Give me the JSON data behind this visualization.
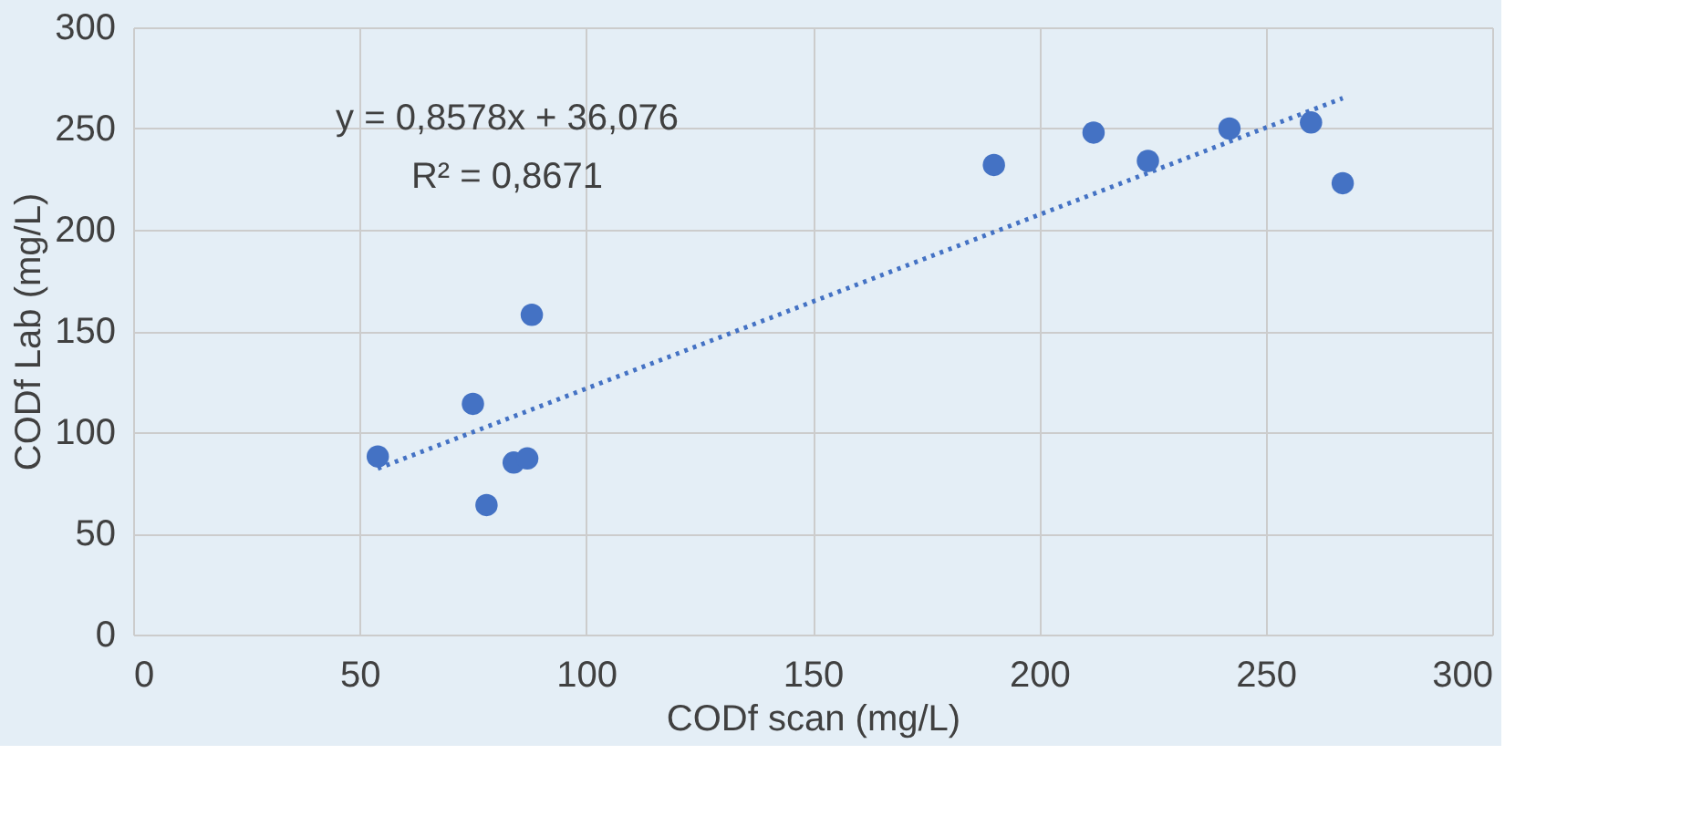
{
  "chart_data": {
    "type": "scatter",
    "xlabel": "CODf scan (mg/L)",
    "ylabel": "CODf Lab (mg/L)",
    "xlim": [
      0,
      300
    ],
    "xticks": [
      0,
      50,
      100,
      150,
      200,
      250,
      300
    ],
    "ylim": [
      0,
      300
    ],
    "yticks": [
      0,
      50,
      100,
      150,
      200,
      250,
      300
    ],
    "grid": true,
    "annotations": [
      "y = 0,8578x + 36,076",
      "R² = 0,8671"
    ],
    "series": [
      {
        "color": "#4472c4",
        "marker": "circle",
        "x": [
          54,
          75,
          88,
          78,
          84,
          87,
          190,
          212,
          224,
          242,
          260,
          267
        ],
        "values": [
          88,
          114,
          158,
          64,
          85,
          87,
          232,
          248,
          234,
          250,
          253,
          223
        ]
      },
      {
        "type": "line",
        "color": "#4472c4",
        "line_style": "dotted",
        "x": [
          54,
          267
        ],
        "values": [
          82,
          265
        ]
      }
    ]
  }
}
